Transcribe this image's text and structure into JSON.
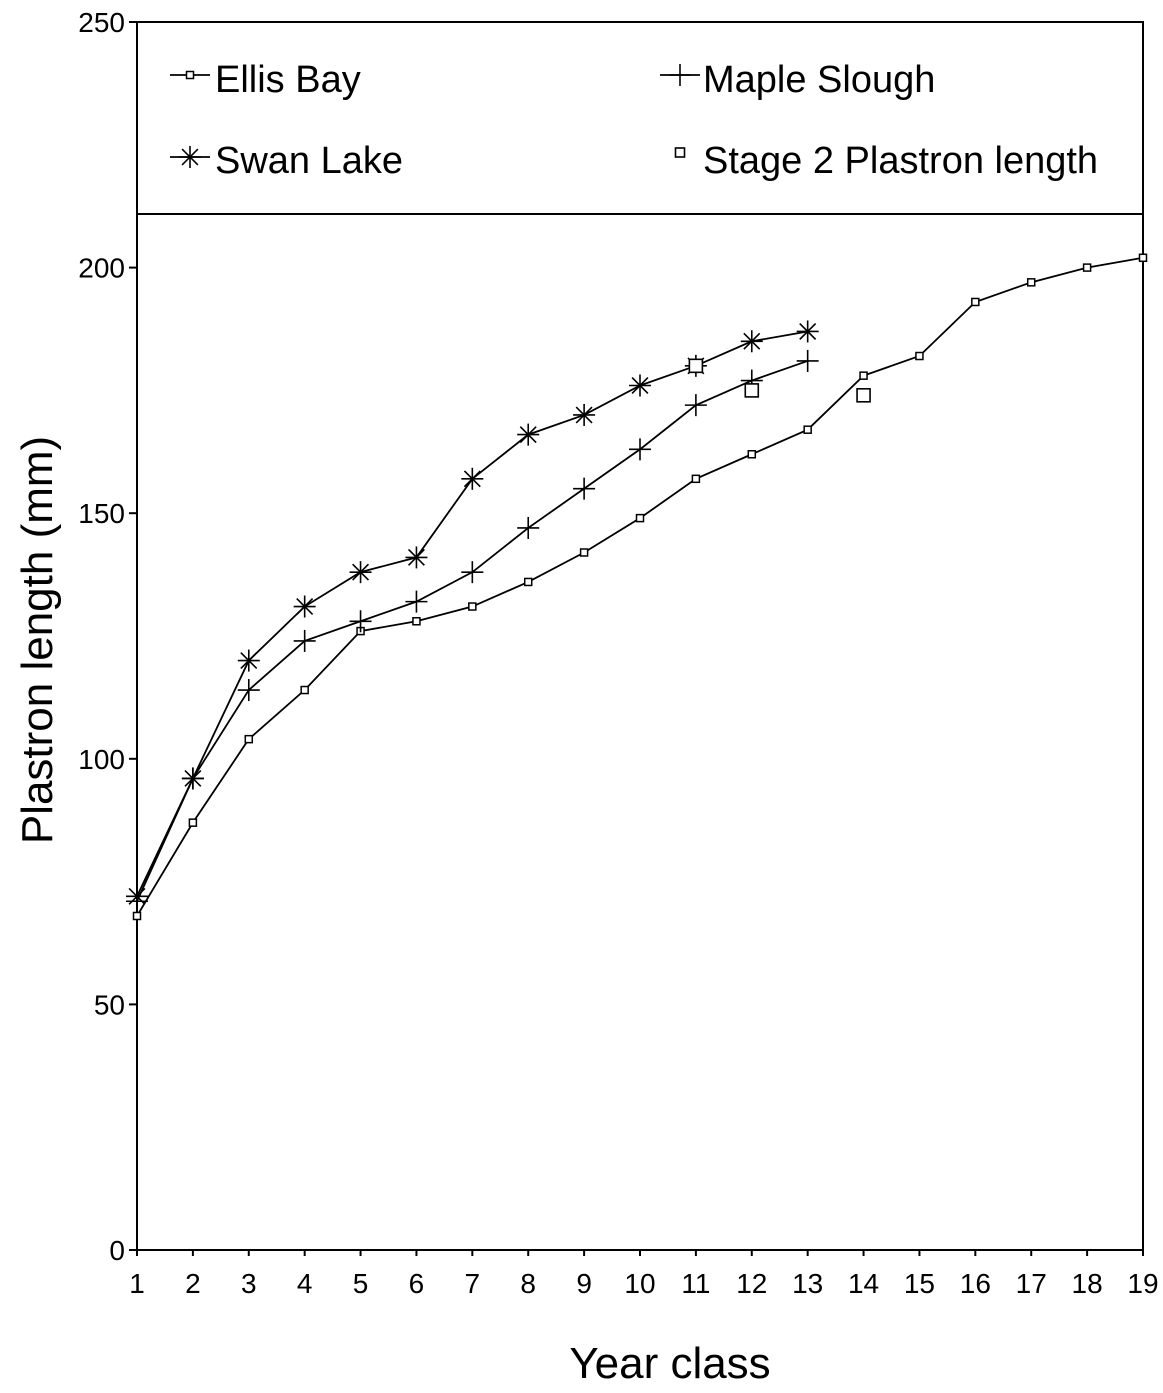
{
  "chart_data": {
    "type": "line",
    "xlabel": "Year class",
    "ylabel": "Plastron length (mm)",
    "xlim": [
      1,
      19
    ],
    "ylim": [
      0,
      250
    ],
    "x_ticks": [
      1,
      2,
      3,
      4,
      5,
      6,
      7,
      8,
      9,
      10,
      11,
      12,
      13,
      14,
      15,
      16,
      17,
      18,
      19
    ],
    "y_ticks": [
      0,
      50,
      100,
      150,
      200,
      250
    ],
    "legend_position": "top",
    "grid": false,
    "series": [
      {
        "name": "Ellis Bay",
        "marker": "small-circle",
        "x": [
          1,
          2,
          3,
          4,
          5,
          6,
          7,
          8,
          9,
          10,
          11,
          12,
          13,
          14,
          15,
          16,
          17,
          18,
          19
        ],
        "y": [
          68,
          87,
          104,
          114,
          126,
          128,
          131,
          136,
          142,
          149,
          157,
          162,
          167,
          178,
          182,
          193,
          197,
          200,
          202
        ]
      },
      {
        "name": "Maple Slough",
        "marker": "plus",
        "x": [
          1,
          2,
          3,
          4,
          5,
          6,
          7,
          8,
          9,
          10,
          11,
          12,
          13
        ],
        "y": [
          71,
          96,
          114,
          124,
          128,
          132,
          138,
          147,
          155,
          163,
          172,
          177,
          181
        ]
      },
      {
        "name": "Swan Lake",
        "marker": "asterisk",
        "x": [
          1,
          2,
          3,
          4,
          5,
          6,
          7,
          8,
          9,
          10,
          11,
          12,
          13
        ],
        "y": [
          72,
          96,
          120,
          131,
          138,
          141,
          157,
          166,
          170,
          176,
          180,
          185,
          187
        ]
      },
      {
        "name": "Stage 2 Plastron length",
        "marker": "open-square",
        "x": [
          11,
          12,
          14
        ],
        "y": [
          180,
          175,
          174
        ]
      }
    ]
  }
}
